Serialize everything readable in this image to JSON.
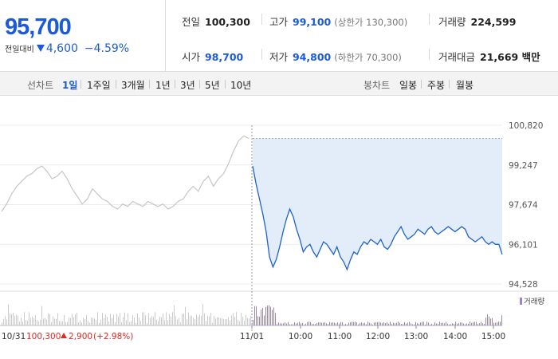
{
  "header": {
    "current_price": "95,700",
    "change_label": "전일대비",
    "change_value": "4,600",
    "change_rate": "−4.59%"
  },
  "stats": {
    "prev_close": {
      "label": "전일",
      "value": "100,300"
    },
    "high": {
      "label": "고가",
      "value": "99,100",
      "sub": "(상한가 130,300)"
    },
    "volume": {
      "label": "거래량",
      "value": "224,599"
    },
    "open": {
      "label": "시가",
      "value": "98,700"
    },
    "low": {
      "label": "저가",
      "value": "94,800",
      "sub": "(하한가 70,300)"
    },
    "trade_amount": {
      "label": "거래대금",
      "value": "21,669 백만"
    }
  },
  "toolbar": {
    "line_chart_label": "선차트",
    "periods": [
      "1일",
      "1주일",
      "3개월",
      "1년",
      "3년",
      "5년",
      "10년"
    ],
    "active_period": "1일",
    "candle_chart_label": "봉차트",
    "candle_periods": [
      "일봉",
      "주봉",
      "월봉"
    ]
  },
  "chart_data": {
    "type": "line",
    "y_ticks": [
      "100,820",
      "99,247",
      "97,674",
      "96,101",
      "94,528"
    ],
    "y_tick_values": [
      100820,
      99247,
      97674,
      96101,
      94528
    ],
    "ylim": [
      94528,
      100820
    ],
    "volume_legend": "거래량",
    "prev_day_label": "10/31",
    "prev_day_close": "100,300",
    "prev_day_change": "2,900",
    "prev_day_rate": "(+2.98%)",
    "x_ticks": [
      "11/01",
      "10:00",
      "11:00",
      "12:00",
      "13:00",
      "14:00",
      "15:00"
    ],
    "grid": true,
    "series": [
      {
        "segment": "previous-day",
        "values": [
          97400,
          97700,
          98100,
          98400,
          98600,
          98800,
          98900,
          99100,
          99200,
          99000,
          98700,
          98800,
          99000,
          98700,
          98300,
          98000,
          97700,
          97900,
          98300,
          98100,
          97900,
          97800,
          97600,
          97500,
          97700,
          97600,
          97800,
          97700,
          97600,
          97800,
          97700,
          97600,
          97700,
          97500,
          97600,
          97800,
          97900,
          98200,
          98400,
          98200,
          98600,
          98800,
          98400,
          98700,
          98900,
          99300,
          99800,
          100200,
          100400,
          100300
        ]
      },
      {
        "segment": "today",
        "values": [
          99200,
          98500,
          97900,
          97300,
          96600,
          95600,
          95200,
          95500,
          96000,
          96600,
          97100,
          97500,
          97200,
          96700,
          96300,
          95800,
          96000,
          96100,
          95800,
          95600,
          95900,
          96200,
          96100,
          95900,
          95700,
          96000,
          95600,
          95400,
          95100,
          95500,
          95800,
          95700,
          96000,
          96200,
          96100,
          96300,
          96200,
          96100,
          96300,
          96000,
          95900,
          96100,
          96400,
          96600,
          96800,
          96500,
          96300,
          96400,
          96500,
          96700,
          96600,
          96500,
          96700,
          96800,
          96600,
          96500,
          96600,
          96700,
          96800,
          96700,
          96600,
          96700,
          96800,
          96700,
          96400,
          96300,
          96200,
          96300,
          96400,
          96200,
          96100,
          96200,
          96100,
          96100,
          95700
        ]
      }
    ]
  },
  "colors": {
    "price_down": "#1b5bd6",
    "price_up": "#e4281f",
    "prev_line": "#c6c6c6",
    "today_line": "#1e62d0",
    "today_fill": "#e3ecf9",
    "volume_today": "#9b86c2",
    "volume_prev": "#cccccc"
  }
}
